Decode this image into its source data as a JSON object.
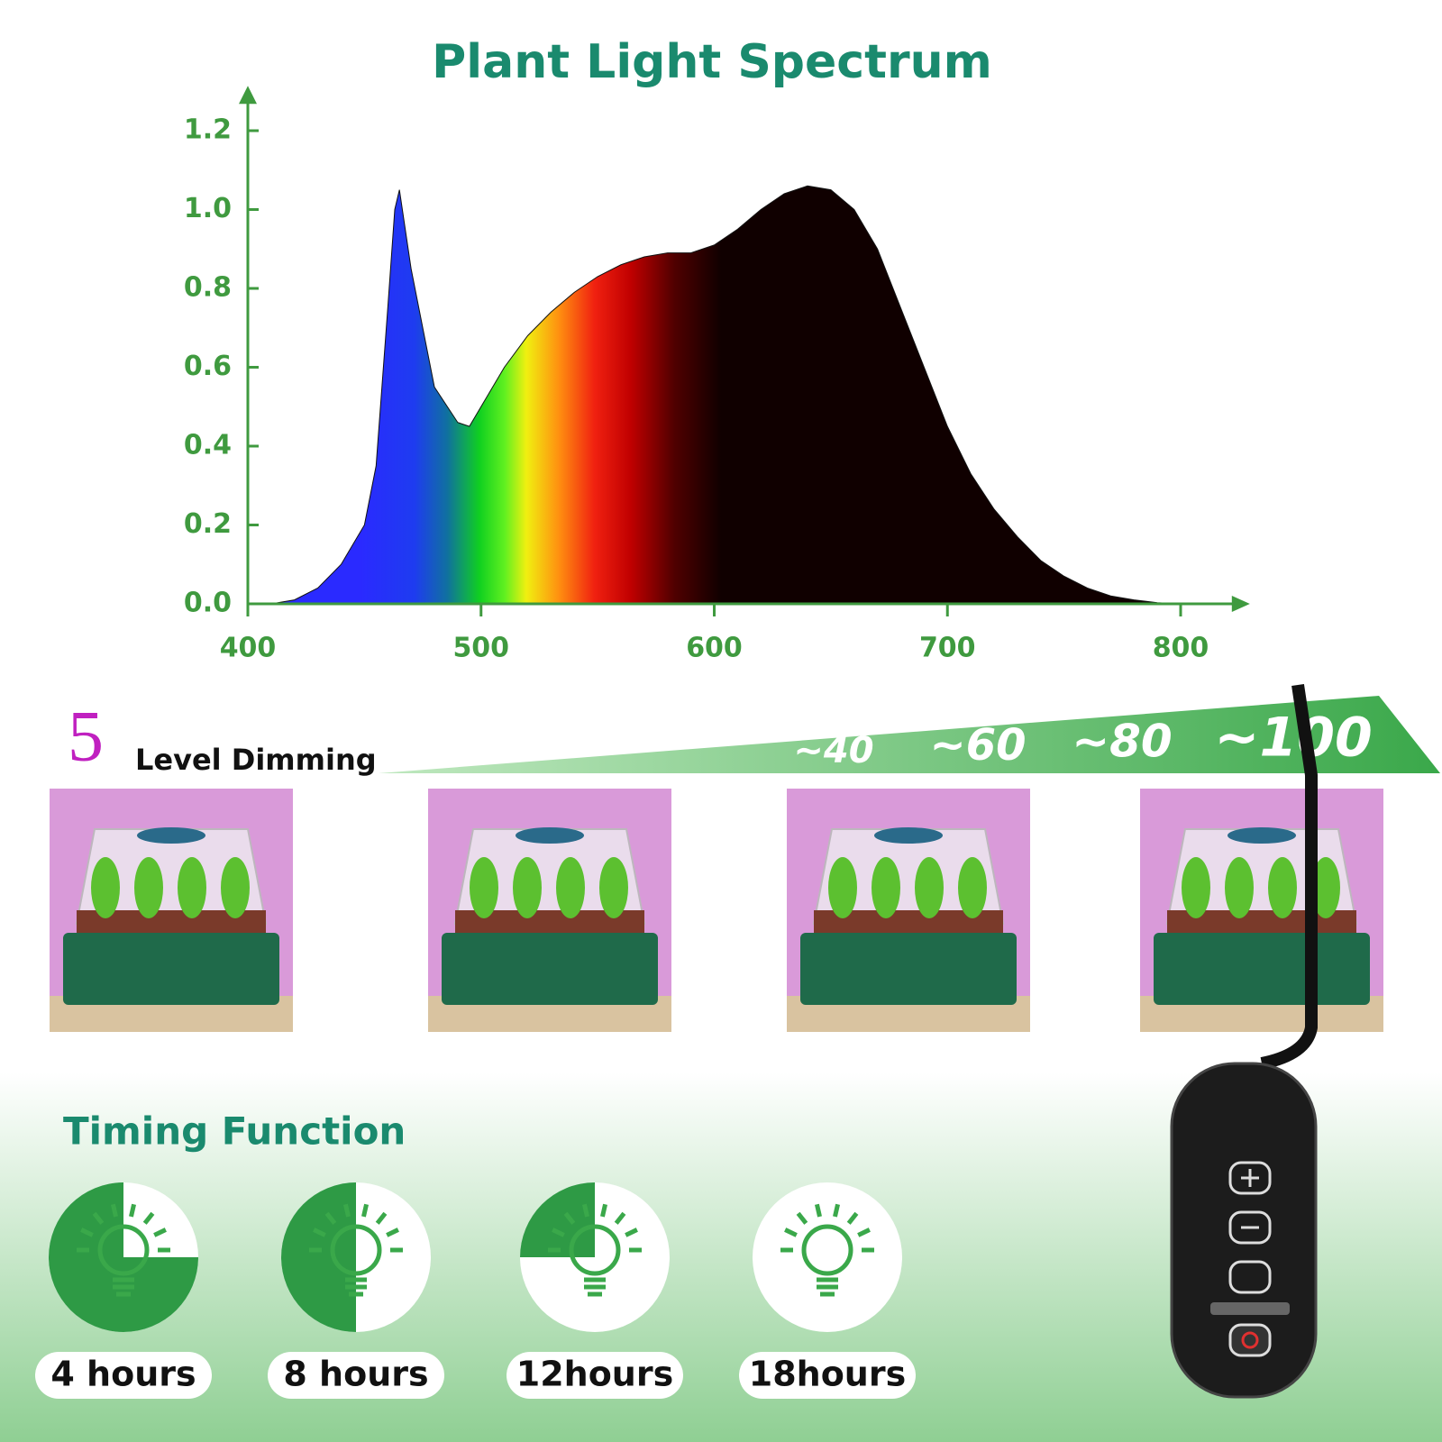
{
  "chart_data": {
    "type": "area",
    "title": "Plant Light Spectrum",
    "x": [
      400,
      410,
      420,
      430,
      440,
      450,
      455,
      460,
      463,
      465,
      470,
      480,
      490,
      495,
      500,
      510,
      520,
      530,
      540,
      550,
      560,
      570,
      580,
      590,
      600,
      610,
      620,
      630,
      640,
      650,
      660,
      670,
      680,
      690,
      700,
      710,
      720,
      730,
      740,
      750,
      760,
      770,
      780,
      790,
      800
    ],
    "values": [
      0,
      0,
      0.01,
      0.04,
      0.1,
      0.2,
      0.35,
      0.75,
      1.0,
      1.05,
      0.85,
      0.55,
      0.46,
      0.45,
      0.5,
      0.6,
      0.68,
      0.74,
      0.79,
      0.83,
      0.86,
      0.88,
      0.89,
      0.89,
      0.91,
      0.95,
      1.0,
      1.04,
      1.06,
      1.05,
      1.0,
      0.9,
      0.75,
      0.6,
      0.45,
      0.33,
      0.24,
      0.17,
      0.11,
      0.07,
      0.04,
      0.02,
      0.01,
      0.003,
      0
    ],
    "xlim": [
      400,
      815
    ],
    "ylim": [
      0,
      1.3
    ],
    "xticks": [
      400,
      500,
      600,
      700,
      800
    ],
    "yticks": [
      {
        "value": 0,
        "label": "0.0"
      },
      0.2,
      0.4,
      0.6,
      0.8,
      {
        "value": 1,
        "label": "1.0"
      },
      1.2
    ],
    "axis_color": "#3f9a3f"
  },
  "dimming": {
    "number": "5",
    "title": "Level Dimming",
    "levels": [
      "~40",
      "~60",
      "~80",
      "~100"
    ]
  },
  "timing": {
    "title": "Timing Function",
    "options": [
      "4 hours",
      "8 hours",
      "12hours",
      "18hours"
    ]
  }
}
